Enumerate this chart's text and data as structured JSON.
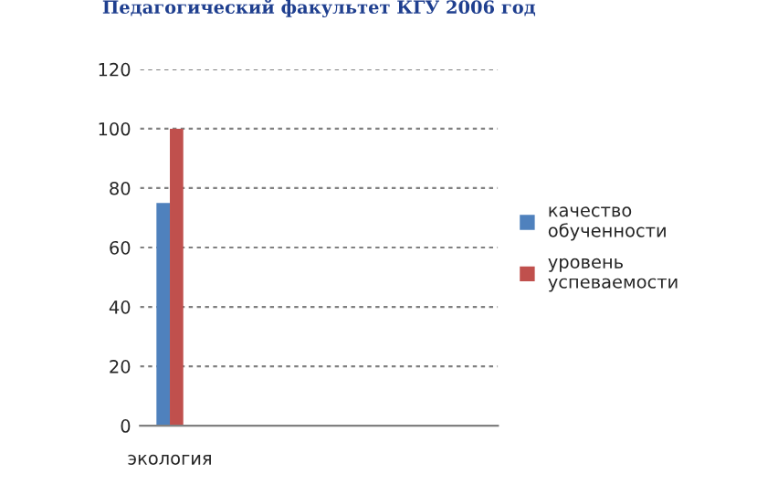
{
  "chart_data": {
    "type": "bar",
    "title": "Педагогический факультет КГУ 2006 год",
    "categories": [
      "экология",
      null,
      null,
      null,
      null,
      null
    ],
    "series": [
      {
        "name": "качество\nобученности",
        "color": "#4f81bd",
        "values": [
          75,
          null,
          null,
          null,
          null,
          null
        ]
      },
      {
        "name": "уровень\nуспеваемости",
        "color": "#c0504d",
        "values": [
          100,
          null,
          null,
          null,
          null,
          null
        ]
      }
    ],
    "ylim": [
      0,
      120
    ],
    "yticks": [
      0,
      20,
      40,
      60,
      80,
      100,
      120
    ],
    "grid": "y",
    "legend": "right"
  }
}
